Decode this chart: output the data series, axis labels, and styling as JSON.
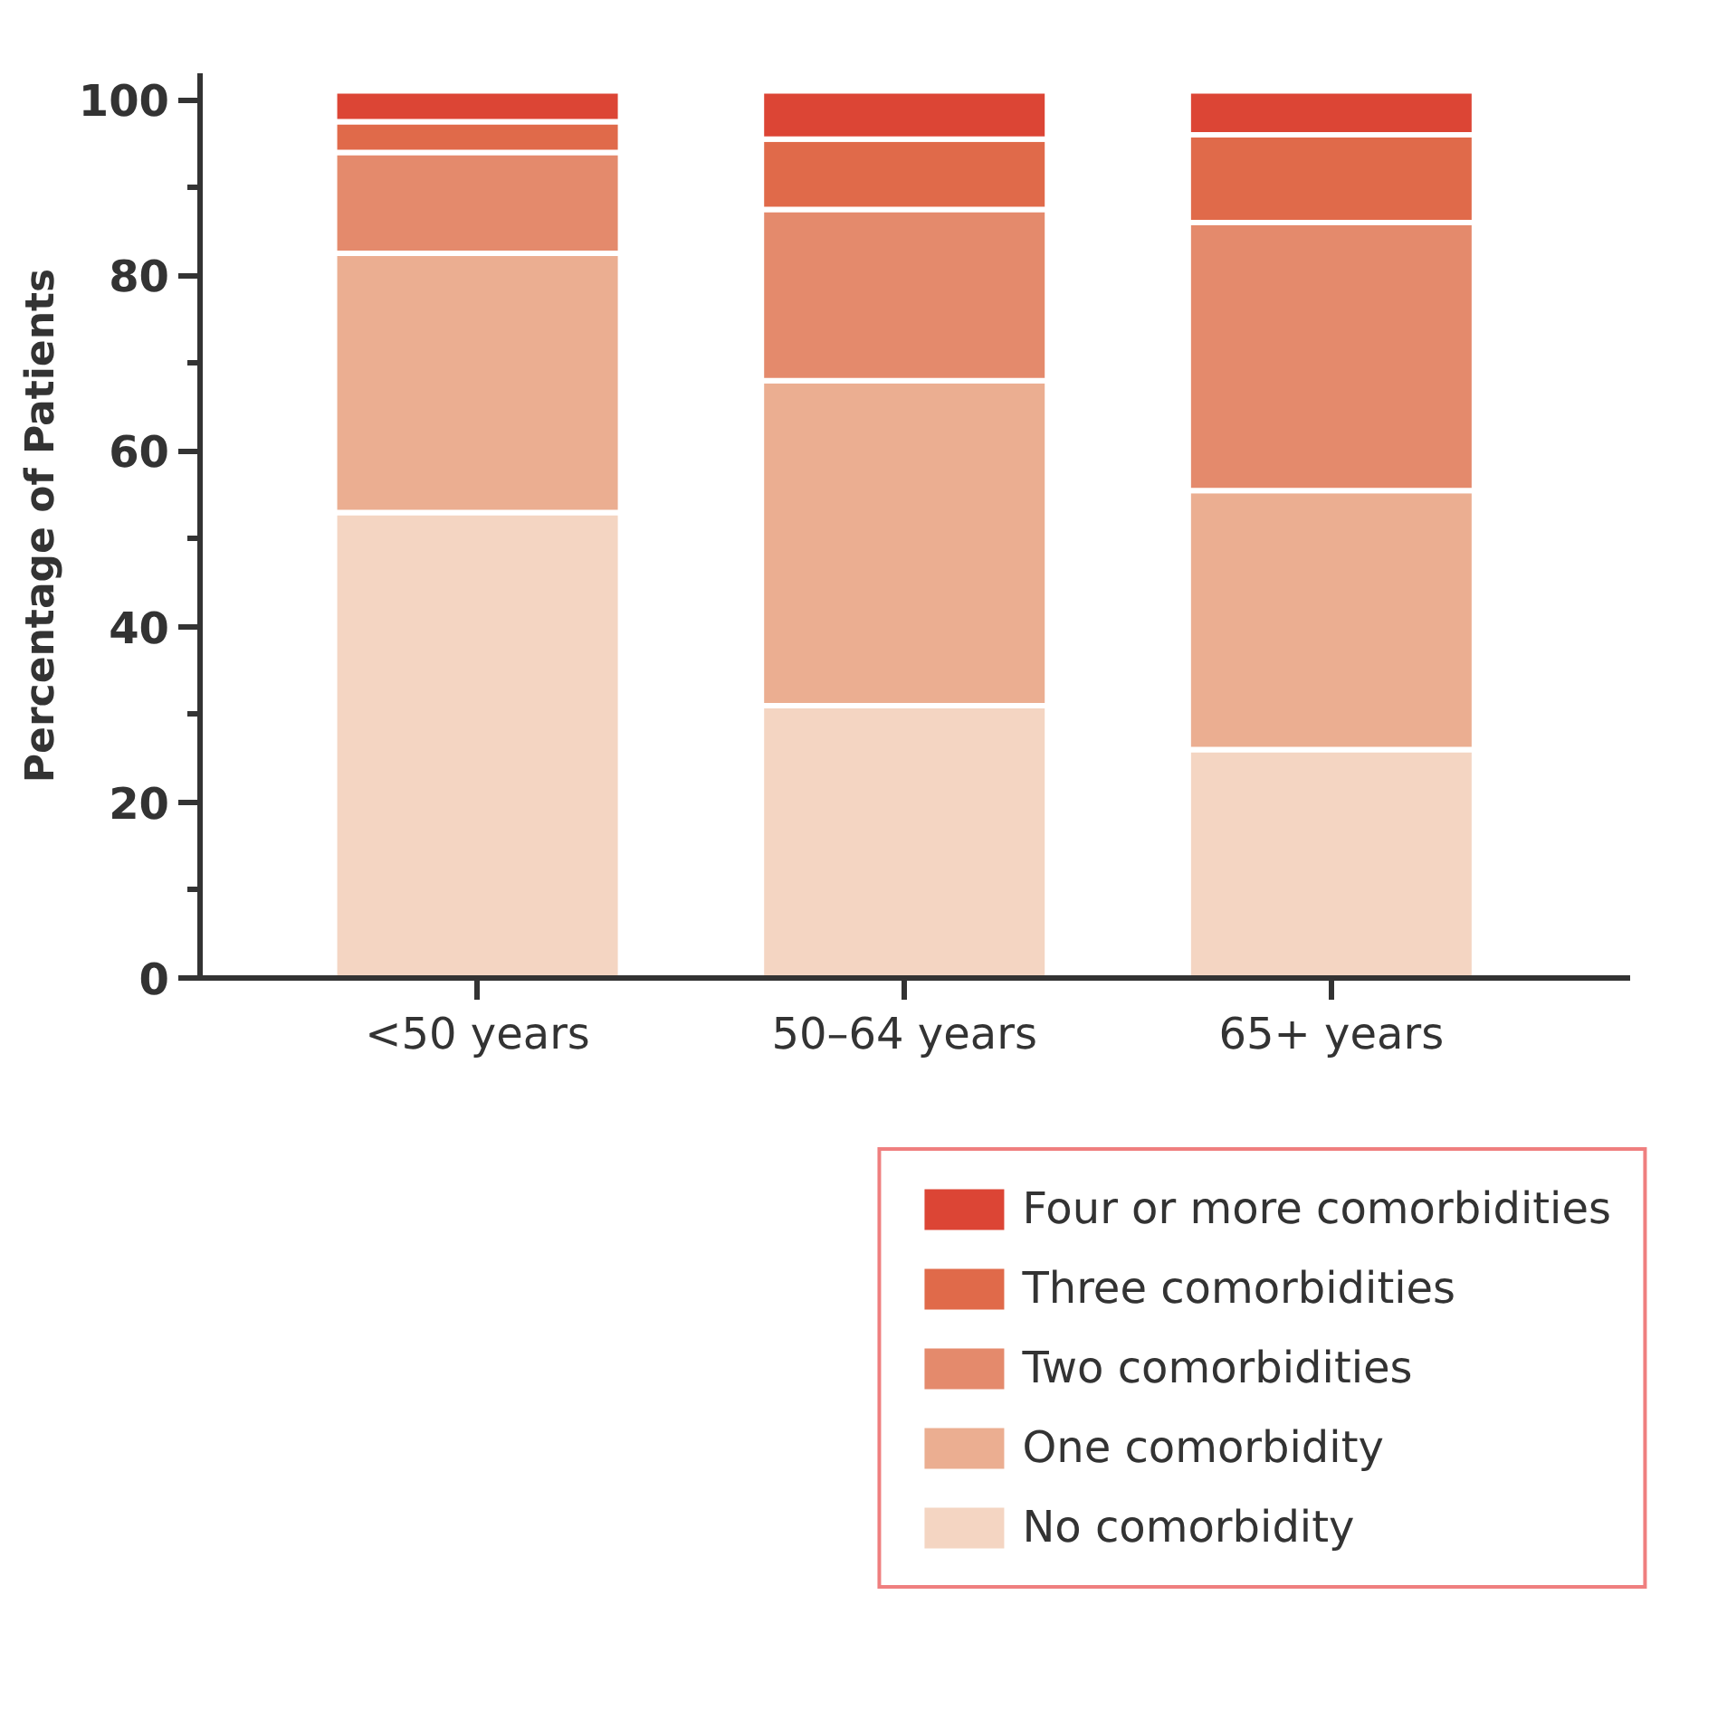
{
  "chart_data": {
    "type": "bar",
    "stacked": true,
    "ylabel": "Percentage of Patients",
    "categories": [
      "<50 years",
      "50–64 years",
      "65+ years"
    ],
    "series": [
      {
        "name": "No comorbidity",
        "color": "#f4d5c2",
        "values": [
          53,
          31,
          26
        ]
      },
      {
        "name": "One comorbidity",
        "color": "#ebae91",
        "values": [
          29.5,
          37,
          29.5
        ]
      },
      {
        "name": "Two comorbidities",
        "color": "#e48a6c",
        "values": [
          11.5,
          19.5,
          30.5
        ]
      },
      {
        "name": "Three comorbidities",
        "color": "#e06a4a",
        "values": [
          3.5,
          8,
          10
        ]
      },
      {
        "name": "Four or more comorbidities",
        "color": "#dc4535",
        "values": [
          3.5,
          5.5,
          5
        ]
      }
    ],
    "ylim": [
      0,
      103
    ],
    "yticks": [
      0,
      20,
      40,
      60,
      80,
      100
    ],
    "grid": false,
    "legend": "bottom right"
  }
}
